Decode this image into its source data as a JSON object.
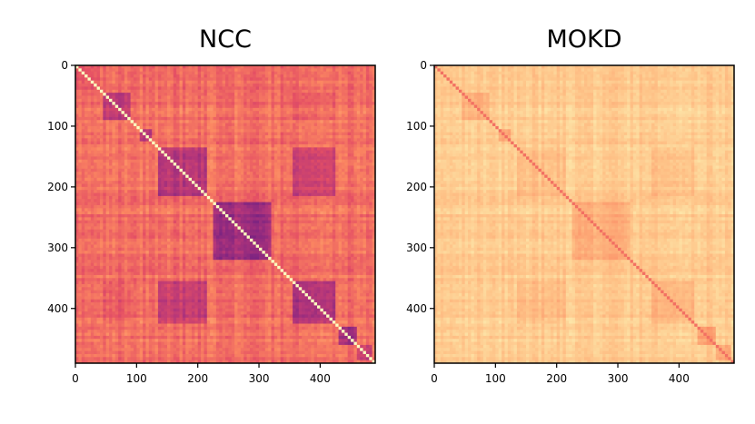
{
  "chart_data": [
    {
      "type": "heatmap",
      "title": "NCC",
      "xlabel": "",
      "ylabel": "",
      "xlim": [
        0,
        490
      ],
      "ylim": [
        490,
        0
      ],
      "x_ticks": [
        0,
        100,
        200,
        300,
        400
      ],
      "y_ticks": [
        0,
        100,
        200,
        300,
        400
      ],
      "colormap": "magma",
      "diagonal_value": 1.0,
      "background_value": 0.7,
      "block_ranges": [
        [
          0,
          40
        ],
        [
          40,
          95
        ],
        [
          95,
          130
        ],
        [
          130,
          220
        ],
        [
          220,
          325
        ],
        [
          325,
          360
        ],
        [
          360,
          430
        ],
        [
          430,
          470
        ],
        [
          470,
          490
        ]
      ],
      "strong_blocks": [
        {
          "start": 45,
          "end": 90,
          "value": 0.52
        },
        {
          "start": 105,
          "end": 125,
          "value": 0.5
        },
        {
          "start": 135,
          "end": 215,
          "value": 0.5
        },
        {
          "start": 225,
          "end": 320,
          "value": 0.45
        },
        {
          "start": 355,
          "end": 425,
          "value": 0.48
        },
        {
          "start": 430,
          "end": 460,
          "value": 0.45
        },
        {
          "start": 460,
          "end": 485,
          "value": 0.55
        }
      ],
      "off_diagonal_pairs": [
        {
          "rows": [
            135,
            215
          ],
          "cols": [
            355,
            425
          ],
          "value": 0.55
        },
        {
          "rows": [
            45,
            90
          ],
          "cols": [
            355,
            425
          ],
          "value": 0.66
        },
        {
          "rows": [
            0,
            40
          ],
          "cols": [
            0,
            40
          ],
          "value": 0.66
        }
      ]
    },
    {
      "type": "heatmap",
      "title": "MOKD",
      "xlabel": "",
      "ylabel": "",
      "xlim": [
        0,
        490
      ],
      "ylim": [
        490,
        0
      ],
      "x_ticks": [
        0,
        100,
        200,
        300,
        400
      ],
      "y_ticks": [
        0,
        100,
        200,
        300,
        400
      ],
      "colormap": "magma",
      "diagonal_value": 0.7,
      "background_value": 0.9,
      "block_ranges": [
        [
          0,
          40
        ],
        [
          40,
          95
        ],
        [
          95,
          130
        ],
        [
          130,
          220
        ],
        [
          220,
          325
        ],
        [
          325,
          360
        ],
        [
          360,
          430
        ],
        [
          430,
          470
        ],
        [
          470,
          490
        ]
      ],
      "strong_blocks": [
        {
          "start": 45,
          "end": 90,
          "value": 0.84
        },
        {
          "start": 105,
          "end": 125,
          "value": 0.82
        },
        {
          "start": 135,
          "end": 215,
          "value": 0.87
        },
        {
          "start": 225,
          "end": 320,
          "value": 0.84
        },
        {
          "start": 355,
          "end": 425,
          "value": 0.85
        },
        {
          "start": 430,
          "end": 460,
          "value": 0.8
        },
        {
          "start": 460,
          "end": 485,
          "value": 0.82
        }
      ],
      "off_diagonal_pairs": [
        {
          "rows": [
            135,
            215
          ],
          "cols": [
            355,
            425
          ],
          "value": 0.87
        }
      ]
    }
  ]
}
